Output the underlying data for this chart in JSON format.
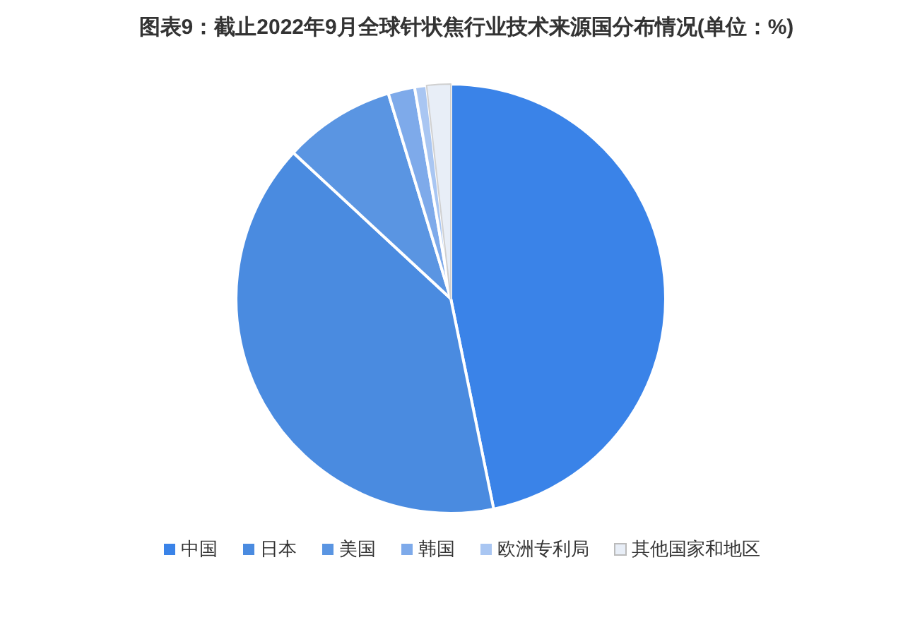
{
  "chart_data": {
    "type": "pie",
    "title": "图表9：截止2022年9月全球针状焦行业技术来源国分布情况(单位：%)",
    "categories": [
      "中国",
      "日本",
      "美国",
      "韩国",
      "欧洲专利局",
      "其他国家和地区"
    ],
    "values": [
      46.8,
      40.1,
      8.4,
      2.0,
      0.9,
      1.8
    ],
    "colors": [
      "#3a83e8",
      "#4a8be0",
      "#5a95e2",
      "#7eaaea",
      "#a9c6f2",
      "#e8eef7"
    ],
    "legend": "bottom"
  }
}
